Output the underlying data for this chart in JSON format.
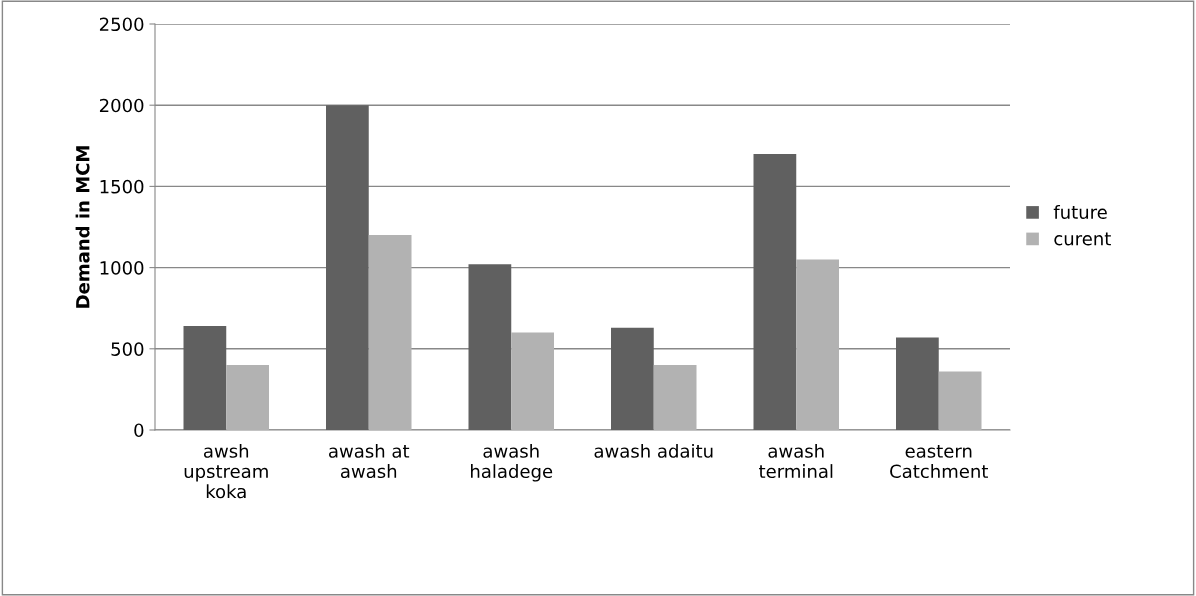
{
  "chart_data": {
    "type": "bar",
    "ylabel": "Demand in MCM",
    "categories": [
      "awsh\nupstream\nkoka",
      "awash at\nawash",
      "awash\nhaladege",
      "awash adaitu",
      "awash\nterminal",
      "eastern\nCatchment"
    ],
    "series": [
      {
        "name": "future",
        "color": "#606060",
        "values": [
          640,
          2000,
          1020,
          630,
          1700,
          570
        ]
      },
      {
        "name": "curent",
        "color": "#b2b2b2",
        "values": [
          400,
          1200,
          600,
          400,
          1050,
          360
        ]
      }
    ],
    "ylim": [
      0,
      2500
    ],
    "yticks": [
      0,
      500,
      1000,
      1500,
      2000,
      2500
    ],
    "grid": "y",
    "legend": "right"
  }
}
